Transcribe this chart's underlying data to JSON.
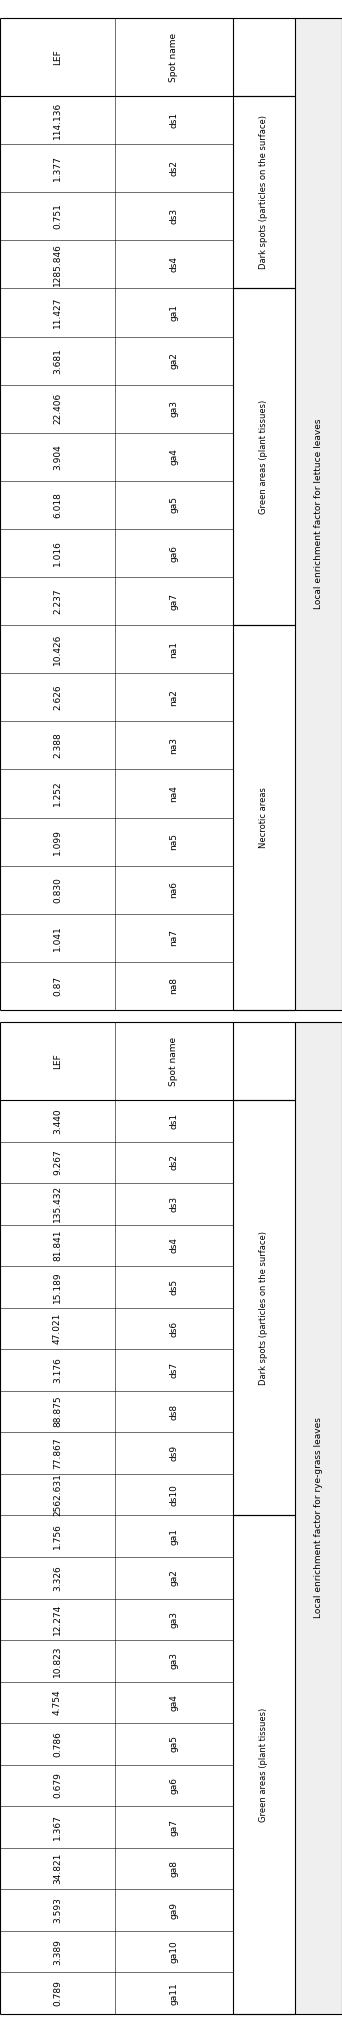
{
  "table1_title": "Local enrichment factor for lettuce leaves",
  "table1_dark_header": "Dark spots (particles on the surface)",
  "table1_green_header": "Green areas (plant tissues)",
  "table1_necrotic_header": "Necrotic areas",
  "table1_spot_names": [
    "ds1",
    "ds2",
    "ds3",
    "ds4",
    "ga1",
    "ga2",
    "ga3",
    "ga4",
    "ga5",
    "ga6",
    "ga7",
    "na1",
    "na2",
    "na3",
    "na4",
    "na5",
    "na6",
    "na7",
    "na8"
  ],
  "table1_values": [
    "114.136",
    "1.377",
    "0.751",
    "1285.846",
    "11.427",
    "3.681",
    "22.406",
    "3.904",
    "6.018",
    "1.016",
    "2.237",
    "10.426",
    "2.626",
    "2.388",
    "1.252",
    "1.099",
    "0.830",
    "1.041",
    "0.87"
  ],
  "table1_dark_cols": [
    0,
    1,
    2,
    3
  ],
  "table1_green_cols": [
    4,
    5,
    6,
    7,
    8,
    9,
    10
  ],
  "table1_necrotic_cols": [
    11,
    12,
    13,
    14,
    15,
    16,
    17,
    18
  ],
  "table2_title": "Local enrichment factor for rye-grass leaves",
  "table2_dark_header": "Dark spots (particles on the surface)",
  "table2_green_header": "Green areas (plant tissues)",
  "table2_spot_names": [
    "ds1",
    "ds2",
    "ds3",
    "ds4",
    "ds5",
    "ds6",
    "ds7",
    "ds8",
    "ds9",
    "ds10",
    "ga1",
    "ga2",
    "ga3",
    "ga3",
    "ga4",
    "ga5",
    "ga6",
    "ga7",
    "ga8",
    "ga9",
    "ga10",
    "ga11"
  ],
  "table2_values": [
    "3.440",
    "9.267",
    "135.432",
    "81.841",
    "15.189",
    "47.021",
    "3.176",
    "88.875",
    "77.867",
    "2562.631",
    "1.756",
    "3.326",
    "12.274",
    "10.823",
    "4.754",
    "0.786",
    "0.679",
    "1.367",
    "34.821",
    "3.593",
    "3.389",
    "0.789"
  ],
  "table2_dark_cols": [
    0,
    1,
    2,
    3,
    4,
    5,
    6,
    7,
    8,
    9
  ],
  "table2_green_cols": [
    10,
    11,
    12,
    13,
    14,
    15,
    16,
    17,
    18,
    19,
    20,
    21
  ],
  "bg_color": "#ffffff",
  "line_color": "#000000",
  "text_color": "#000000",
  "title_bg": "#e8e8e8"
}
